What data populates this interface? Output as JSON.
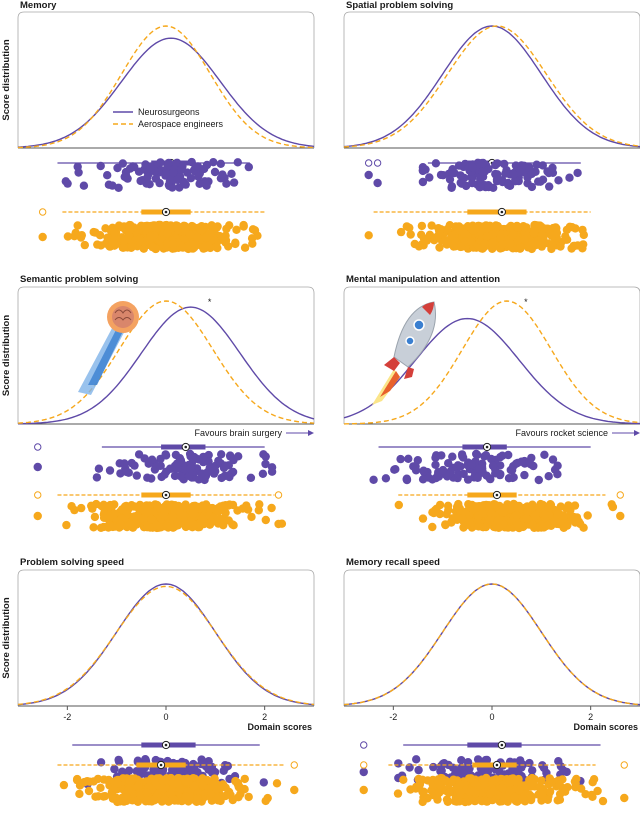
{
  "colors": {
    "neuro": "#5f4aa8",
    "aero": "#f6a81c",
    "frame": "#a9a9a9"
  },
  "chart_data": [
    {
      "type": "area",
      "title": "Memory",
      "ylabel": "Score distribution",
      "legend": {
        "placement": "center",
        "neuro": "Neurosurgeons",
        "aero": "Aerospace engineers"
      },
      "xlim": [
        -3,
        3
      ],
      "series": [
        {
          "name": "Neurosurgeons",
          "mean": 0.1,
          "sd": 1.0,
          "box": {
            "min": -2.2,
            "q1": -0.3,
            "median": 0.1,
            "q3": 0.5,
            "max": 1.7
          },
          "outliers": []
        },
        {
          "name": "Aerospace engineers",
          "mean": 0.0,
          "sd": 0.9,
          "box": {
            "min": -2.1,
            "q1": -0.5,
            "median": 0.0,
            "q3": 0.5,
            "max": 2.0
          },
          "outliers": [
            -2.5
          ]
        }
      ]
    },
    {
      "type": "area",
      "title": "Spatial problem solving",
      "xlim": [
        -3,
        3
      ],
      "series": [
        {
          "name": "Neurosurgeons",
          "mean": 0.0,
          "sd": 1.0,
          "box": {
            "min": -1.3,
            "q1": -0.6,
            "median": 0.0,
            "q3": 0.3,
            "max": 1.8
          },
          "outliers": [
            -2.5,
            -2.4
          ]
        },
        {
          "name": "Aerospace engineers",
          "mean": 0.1,
          "sd": 1.0,
          "box": {
            "min": -2.4,
            "q1": -0.5,
            "median": 0.2,
            "q3": 0.7,
            "max": 2.0
          },
          "outliers": []
        }
      ]
    },
    {
      "type": "area",
      "title": "Semantic problem solving",
      "ylabel": "Score distribution",
      "annotation": "Favours brain surgery",
      "xlim": [
        -3,
        3
      ],
      "series": [
        {
          "name": "Neurosurgeons",
          "mean": 0.5,
          "sd": 1.0,
          "box": {
            "min": -1.3,
            "q1": -0.1,
            "median": 0.4,
            "q3": 0.8,
            "max": 2.0
          },
          "outliers": [
            -2.6
          ]
        },
        {
          "name": "Aerospace engineers",
          "mean": 0.0,
          "sd": 0.95,
          "box": {
            "min": -2.2,
            "q1": -0.5,
            "median": 0.0,
            "q3": 0.5,
            "max": 2.2
          },
          "outliers": [
            -2.6,
            2.2
          ]
        }
      ]
    },
    {
      "type": "area",
      "title": "Mental manipulation and attention",
      "annotation": "Favours rocket science",
      "xlim": [
        -3,
        3
      ],
      "series": [
        {
          "name": "Neurosurgeons",
          "mean": -0.5,
          "sd": 1.05,
          "box": {
            "min": -2.3,
            "q1": -0.6,
            "median": -0.1,
            "q3": 0.3,
            "max": 2.0
          },
          "outliers": []
        },
        {
          "name": "Aerospace engineers",
          "mean": 0.3,
          "sd": 0.9,
          "box": {
            "min": -1.9,
            "q1": -0.5,
            "median": 0.1,
            "q3": 0.5,
            "max": 2.3
          },
          "outliers": [
            2.6
          ]
        }
      ]
    },
    {
      "type": "area",
      "title": "Problem solving speed",
      "ylabel": "Score distribution",
      "xlabel": "Domain scores",
      "xlim": [
        -3,
        3
      ],
      "xticks": [
        -2,
        0,
        2
      ],
      "series": [
        {
          "name": "Neurosurgeons",
          "mean": 0.0,
          "sd": 1.0,
          "box": {
            "min": -1.9,
            "q1": -0.5,
            "median": 0.0,
            "q3": 0.6,
            "max": 1.9
          },
          "outliers": []
        },
        {
          "name": "Aerospace engineers",
          "mean": 0.0,
          "sd": 1.02,
          "box": {
            "min": -2.2,
            "q1": -0.6,
            "median": -0.1,
            "q3": 0.4,
            "max": 2.4
          },
          "outliers": [
            2.6
          ]
        }
      ]
    },
    {
      "type": "area",
      "title": "Memory recall speed",
      "xlabel": "Domain scores",
      "xlim": [
        -3,
        3
      ],
      "xticks": [
        -2,
        0,
        2
      ],
      "series": [
        {
          "name": "Neurosurgeons",
          "mean": 0.0,
          "sd": 1.0,
          "box": {
            "min": -1.8,
            "q1": -0.5,
            "median": 0.2,
            "q3": 0.6,
            "max": 2.2
          },
          "outliers": [
            -2.6
          ]
        },
        {
          "name": "Aerospace engineers",
          "mean": 0.0,
          "sd": 1.0,
          "box": {
            "min": -2.1,
            "q1": -0.4,
            "median": 0.1,
            "q3": 0.5,
            "max": 2.1
          },
          "outliers": [
            -2.6,
            2.6
          ]
        }
      ]
    }
  ]
}
